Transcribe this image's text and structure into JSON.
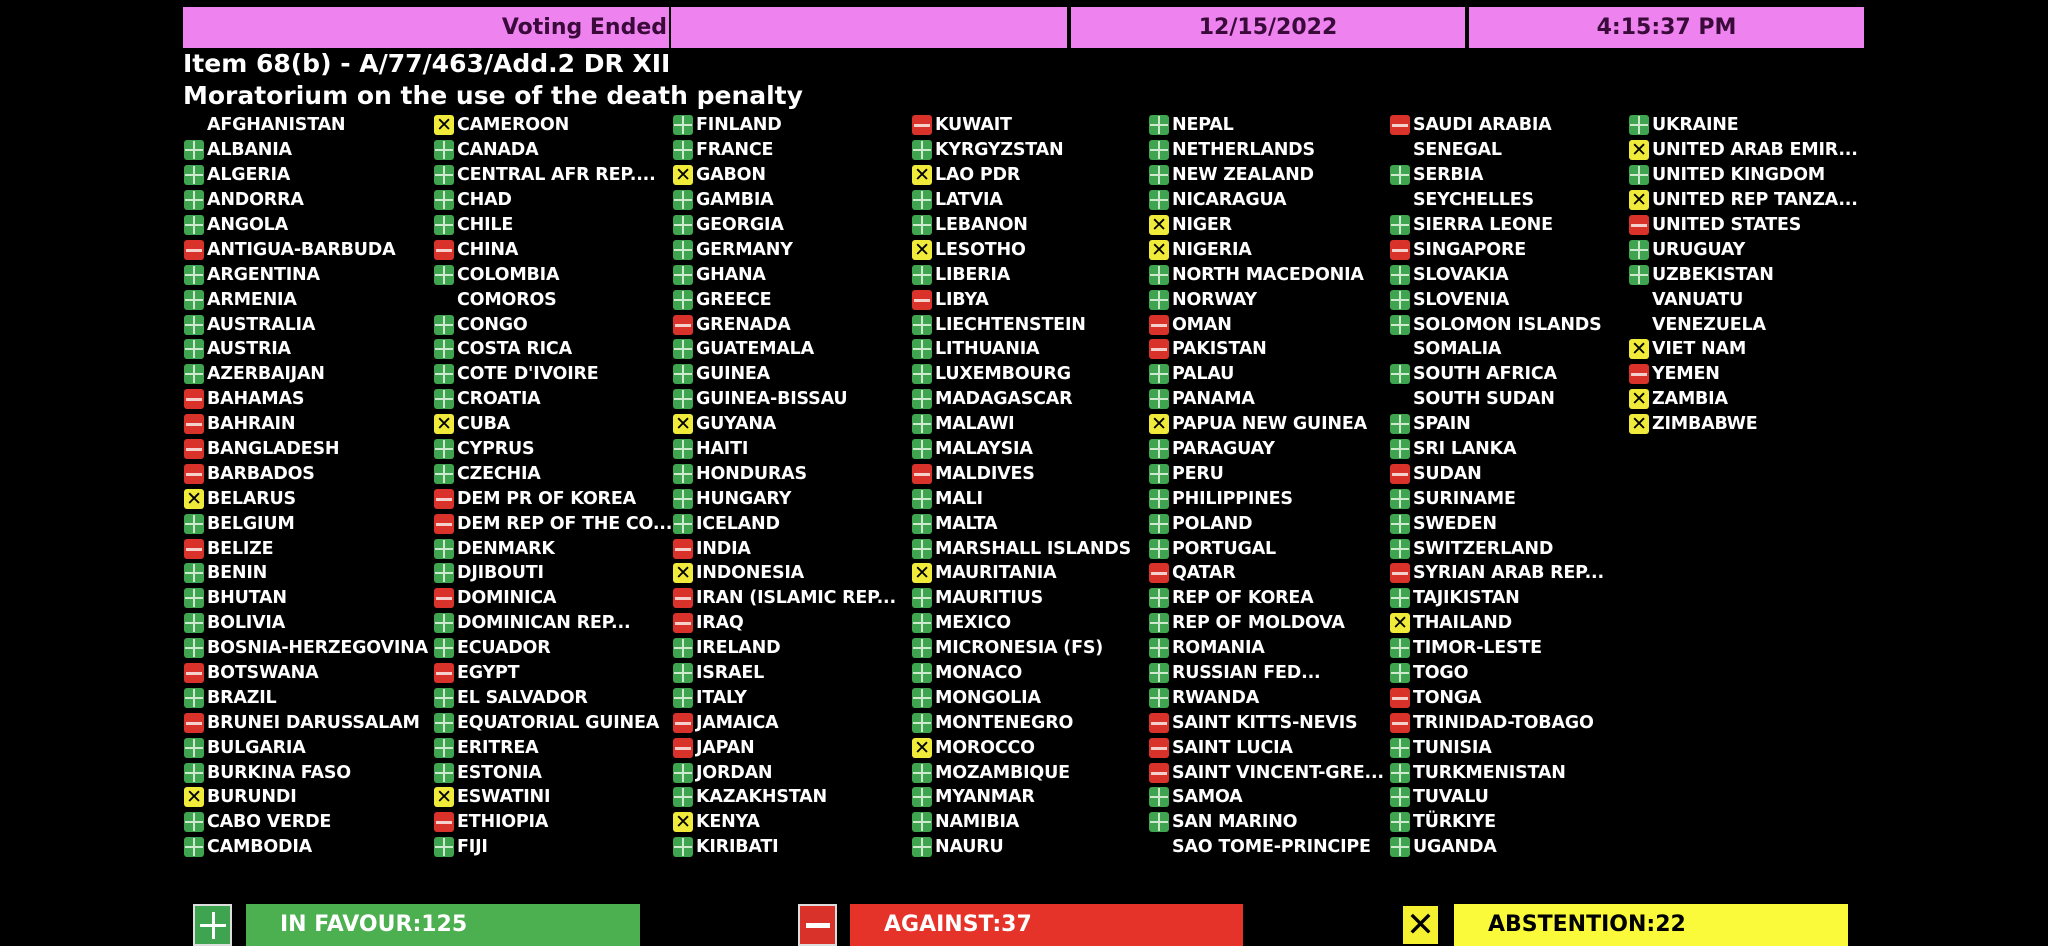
{
  "header": {
    "status": "Voting Ended",
    "blank": "",
    "date": "12/15/2022",
    "time": "4:15:37 PM"
  },
  "item": {
    "line1": "Item 68(b) - A/77/463/Add.2 DR XII",
    "line2": "Moratorium on the use of the death penalty"
  },
  "vote_colors": {
    "Y": "#3fa44f",
    "N": "#d8322a",
    "A": "#f0ea3a"
  },
  "columns": [
    [
      [
        "AFGHANISTAN",
        ""
      ],
      [
        "ALBANIA",
        "Y"
      ],
      [
        "ALGERIA",
        "Y"
      ],
      [
        "ANDORRA",
        "Y"
      ],
      [
        "ANGOLA",
        "Y"
      ],
      [
        "ANTIGUA-BARBUDA",
        "N"
      ],
      [
        "ARGENTINA",
        "Y"
      ],
      [
        "ARMENIA",
        "Y"
      ],
      [
        "AUSTRALIA",
        "Y"
      ],
      [
        "AUSTRIA",
        "Y"
      ],
      [
        "AZERBAIJAN",
        "Y"
      ],
      [
        "BAHAMAS",
        "N"
      ],
      [
        "BAHRAIN",
        "N"
      ],
      [
        "BANGLADESH",
        "N"
      ],
      [
        "BARBADOS",
        "N"
      ],
      [
        "BELARUS",
        "A"
      ],
      [
        "BELGIUM",
        "Y"
      ],
      [
        "BELIZE",
        "N"
      ],
      [
        "BENIN",
        "Y"
      ],
      [
        "BHUTAN",
        "Y"
      ],
      [
        "BOLIVIA",
        "Y"
      ],
      [
        "BOSNIA-HERZEGOVINA",
        "Y"
      ],
      [
        "BOTSWANA",
        "N"
      ],
      [
        "BRAZIL",
        "Y"
      ],
      [
        "BRUNEI DARUSSALAM",
        "N"
      ],
      [
        "BULGARIA",
        "Y"
      ],
      [
        "BURKINA FASO",
        "Y"
      ],
      [
        "BURUNDI",
        "A"
      ],
      [
        "CABO VERDE",
        "Y"
      ],
      [
        "CAMBODIA",
        "Y"
      ]
    ],
    [
      [
        "CAMEROON",
        "A"
      ],
      [
        "CANADA",
        "Y"
      ],
      [
        "CENTRAL AFR REP....",
        "Y"
      ],
      [
        "CHAD",
        "Y"
      ],
      [
        "CHILE",
        "Y"
      ],
      [
        "CHINA",
        "N"
      ],
      [
        "COLOMBIA",
        "Y"
      ],
      [
        "COMOROS",
        ""
      ],
      [
        "CONGO",
        "Y"
      ],
      [
        "COSTA RICA",
        "Y"
      ],
      [
        "COTE D'IVOIRE",
        "Y"
      ],
      [
        "CROATIA",
        "Y"
      ],
      [
        "CUBA",
        "A"
      ],
      [
        "CYPRUS",
        "Y"
      ],
      [
        "CZECHIA",
        "Y"
      ],
      [
        "DEM PR OF KOREA",
        "N"
      ],
      [
        "DEM REP OF THE CO...",
        "N"
      ],
      [
        "DENMARK",
        "Y"
      ],
      [
        "DJIBOUTI",
        "Y"
      ],
      [
        "DOMINICA",
        "N"
      ],
      [
        "DOMINICAN REP...",
        "Y"
      ],
      [
        "ECUADOR",
        "Y"
      ],
      [
        "EGYPT",
        "N"
      ],
      [
        "EL SALVADOR",
        "Y"
      ],
      [
        "EQUATORIAL GUINEA",
        "Y"
      ],
      [
        "ERITREA",
        "Y"
      ],
      [
        "ESTONIA",
        "Y"
      ],
      [
        "ESWATINI",
        "A"
      ],
      [
        "ETHIOPIA",
        "N"
      ],
      [
        "FIJI",
        "Y"
      ]
    ],
    [
      [
        "FINLAND",
        "Y"
      ],
      [
        "FRANCE",
        "Y"
      ],
      [
        "GABON",
        "A"
      ],
      [
        "GAMBIA",
        "Y"
      ],
      [
        "GEORGIA",
        "Y"
      ],
      [
        "GERMANY",
        "Y"
      ],
      [
        "GHANA",
        "Y"
      ],
      [
        "GREECE",
        "Y"
      ],
      [
        "GRENADA",
        "N"
      ],
      [
        "GUATEMALA",
        "Y"
      ],
      [
        "GUINEA",
        "Y"
      ],
      [
        "GUINEA-BISSAU",
        "Y"
      ],
      [
        "GUYANA",
        "A"
      ],
      [
        "HAITI",
        "Y"
      ],
      [
        "HONDURAS",
        "Y"
      ],
      [
        "HUNGARY",
        "Y"
      ],
      [
        "ICELAND",
        "Y"
      ],
      [
        "INDIA",
        "N"
      ],
      [
        "INDONESIA",
        "A"
      ],
      [
        "IRAN (ISLAMIC REP...",
        "N"
      ],
      [
        "IRAQ",
        "N"
      ],
      [
        "IRELAND",
        "Y"
      ],
      [
        "ISRAEL",
        "Y"
      ],
      [
        "ITALY",
        "Y"
      ],
      [
        "JAMAICA",
        "N"
      ],
      [
        "JAPAN",
        "N"
      ],
      [
        "JORDAN",
        "Y"
      ],
      [
        "KAZAKHSTAN",
        "Y"
      ],
      [
        "KENYA",
        "A"
      ],
      [
        "KIRIBATI",
        "Y"
      ]
    ],
    [
      [
        "KUWAIT",
        "N"
      ],
      [
        "KYRGYZSTAN",
        "Y"
      ],
      [
        "LAO PDR",
        "A"
      ],
      [
        "LATVIA",
        "Y"
      ],
      [
        "LEBANON",
        "Y"
      ],
      [
        "LESOTHO",
        "A"
      ],
      [
        "LIBERIA",
        "Y"
      ],
      [
        "LIBYA",
        "N"
      ],
      [
        "LIECHTENSTEIN",
        "Y"
      ],
      [
        "LITHUANIA",
        "Y"
      ],
      [
        "LUXEMBOURG",
        "Y"
      ],
      [
        "MADAGASCAR",
        "Y"
      ],
      [
        "MALAWI",
        "Y"
      ],
      [
        "MALAYSIA",
        "Y"
      ],
      [
        "MALDIVES",
        "N"
      ],
      [
        "MALI",
        "Y"
      ],
      [
        "MALTA",
        "Y"
      ],
      [
        "MARSHALL ISLANDS",
        "Y"
      ],
      [
        "MAURITANIA",
        "A"
      ],
      [
        "MAURITIUS",
        "Y"
      ],
      [
        "MEXICO",
        "Y"
      ],
      [
        "MICRONESIA (FS)",
        "Y"
      ],
      [
        "MONACO",
        "Y"
      ],
      [
        "MONGOLIA",
        "Y"
      ],
      [
        "MONTENEGRO",
        "Y"
      ],
      [
        "MOROCCO",
        "A"
      ],
      [
        "MOZAMBIQUE",
        "Y"
      ],
      [
        "MYANMAR",
        "Y"
      ],
      [
        "NAMIBIA",
        "Y"
      ],
      [
        "NAURU",
        "Y"
      ]
    ],
    [
      [
        "NEPAL",
        "Y"
      ],
      [
        "NETHERLANDS",
        "Y"
      ],
      [
        "NEW ZEALAND",
        "Y"
      ],
      [
        "NICARAGUA",
        "Y"
      ],
      [
        "NIGER",
        "A"
      ],
      [
        "NIGERIA",
        "A"
      ],
      [
        "NORTH MACEDONIA",
        "Y"
      ],
      [
        "NORWAY",
        "Y"
      ],
      [
        "OMAN",
        "N"
      ],
      [
        "PAKISTAN",
        "N"
      ],
      [
        "PALAU",
        "Y"
      ],
      [
        "PANAMA",
        "Y"
      ],
      [
        "PAPUA NEW GUINEA",
        "A"
      ],
      [
        "PARAGUAY",
        "Y"
      ],
      [
        "PERU",
        "Y"
      ],
      [
        "PHILIPPINES",
        "Y"
      ],
      [
        "POLAND",
        "Y"
      ],
      [
        "PORTUGAL",
        "Y"
      ],
      [
        "QATAR",
        "N"
      ],
      [
        "REP OF KOREA",
        "Y"
      ],
      [
        "REP OF MOLDOVA",
        "Y"
      ],
      [
        "ROMANIA",
        "Y"
      ],
      [
        "RUSSIAN FED...",
        "Y"
      ],
      [
        "RWANDA",
        "Y"
      ],
      [
        "SAINT KITTS-NEVIS",
        "N"
      ],
      [
        "SAINT LUCIA",
        "N"
      ],
      [
        "SAINT VINCENT-GRE...",
        "N"
      ],
      [
        "SAMOA",
        "Y"
      ],
      [
        "SAN MARINO",
        "Y"
      ],
      [
        "SAO TOME-PRINCIPE",
        ""
      ]
    ],
    [
      [
        "SAUDI ARABIA",
        "N"
      ],
      [
        "SENEGAL",
        ""
      ],
      [
        "SERBIA",
        "Y"
      ],
      [
        "SEYCHELLES",
        ""
      ],
      [
        "SIERRA LEONE",
        "Y"
      ],
      [
        "SINGAPORE",
        "N"
      ],
      [
        "SLOVAKIA",
        "Y"
      ],
      [
        "SLOVENIA",
        "Y"
      ],
      [
        "SOLOMON ISLANDS",
        "Y"
      ],
      [
        "SOMALIA",
        ""
      ],
      [
        "SOUTH AFRICA",
        "Y"
      ],
      [
        "SOUTH SUDAN",
        ""
      ],
      [
        "SPAIN",
        "Y"
      ],
      [
        "SRI LANKA",
        "Y"
      ],
      [
        "SUDAN",
        "N"
      ],
      [
        "SURINAME",
        "Y"
      ],
      [
        "SWEDEN",
        "Y"
      ],
      [
        "SWITZERLAND",
        "Y"
      ],
      [
        "SYRIAN ARAB REP...",
        "N"
      ],
      [
        "TAJIKISTAN",
        "Y"
      ],
      [
        "THAILAND",
        "A"
      ],
      [
        "TIMOR-LESTE",
        "Y"
      ],
      [
        "TOGO",
        "Y"
      ],
      [
        "TONGA",
        "N"
      ],
      [
        "TRINIDAD-TOBAGO",
        "N"
      ],
      [
        "TUNISIA",
        "Y"
      ],
      [
        "TURKMENISTAN",
        "Y"
      ],
      [
        "TUVALU",
        "Y"
      ],
      [
        "TÜRKIYE",
        "Y"
      ],
      [
        "UGANDA",
        "Y"
      ]
    ],
    [
      [
        "UKRAINE",
        "Y"
      ],
      [
        "UNITED ARAB EMIR...",
        "A"
      ],
      [
        "UNITED KINGDOM",
        "Y"
      ],
      [
        "UNITED REP TANZA...",
        "A"
      ],
      [
        "UNITED STATES",
        "N"
      ],
      [
        "URUGUAY",
        "Y"
      ],
      [
        "UZBEKISTAN",
        "Y"
      ],
      [
        "VANUATU",
        ""
      ],
      [
        "VENEZUELA",
        ""
      ],
      [
        "VIET NAM",
        "A"
      ],
      [
        "YEMEN",
        "N"
      ],
      [
        "ZAMBIA",
        "A"
      ],
      [
        "ZIMBABWE",
        "A"
      ]
    ]
  ],
  "totals": {
    "in_favour": "IN FAVOUR:125",
    "against": "AGAINST:37",
    "abstention": "ABSTENTION:22"
  }
}
